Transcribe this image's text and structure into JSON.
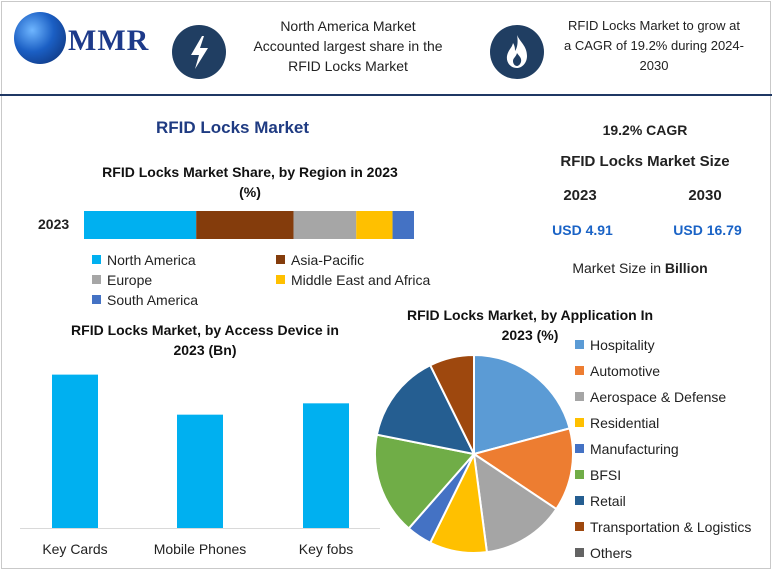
{
  "header": {
    "logo_text": "MMR",
    "banner1_lines": [
      "North America Market",
      "Accounted largest share in the",
      "RFID Locks Market"
    ],
    "banner2_lines": [
      "RFID Locks Market to grow at",
      "a CAGR of 19.2% during 2024-",
      "2030"
    ],
    "icon1": "lightning-bolt-icon",
    "icon2": "flame-icon"
  },
  "colors": {
    "dark_blue": "#203e62",
    "accent_blue": "#1a63c6",
    "title_blue": "#1f3b82"
  },
  "main_title": "RFID Locks Market",
  "summary": {
    "cagr": "19.2% CAGR",
    "size_title": "RFID Locks Market Size",
    "year_start": "2023",
    "year_end": "2030",
    "value_start": "USD 4.91",
    "value_end": "USD 16.79",
    "unit_prefix": "Market Size in ",
    "unit_bold": "Billion"
  },
  "chart_data": [
    {
      "type": "bar",
      "orientation": "stacked-horizontal",
      "title": "RFID Locks Market Share, by Region in 2023 (%)",
      "categories": [
        "2023"
      ],
      "series": [
        {
          "name": "North America",
          "values": [
            34
          ],
          "color": "#00b0f0"
        },
        {
          "name": "Asia-Pacific",
          "values": [
            29.5
          ],
          "color": "#843c0c"
        },
        {
          "name": "Europe",
          "values": [
            19
          ],
          "color": "#a6a6a6"
        },
        {
          "name": "Middle East and Africa",
          "values": [
            11
          ],
          "color": "#ffc000"
        },
        {
          "name": "South America",
          "values": [
            6.5
          ],
          "color": "#4472c4"
        }
      ],
      "legend_placement": "bottom"
    },
    {
      "type": "bar",
      "title": "RFID Locks Market, by Access Device in 2023 (Bn)",
      "categories": [
        "Key Cards",
        "Mobile Phones",
        "Key fobs"
      ],
      "values": [
        2.03,
        1.5,
        1.65
      ],
      "ylim": [
        0,
        2.25
      ],
      "color": "#00b0f0",
      "grid": false
    },
    {
      "type": "pie",
      "title": "RFID Locks Market, by Application In 2023 (%)",
      "categories": [
        "Hospitality",
        "Automotive",
        "Aerospace & Defense",
        "Residential",
        "Manufacturing",
        "BFSI",
        "Retail",
        "Transportation & Logistics",
        "Others"
      ],
      "values": [
        20,
        13,
        13,
        9,
        4,
        16,
        14,
        7,
        0
      ],
      "colors": [
        "#5b9bd5",
        "#ed7d31",
        "#a5a5a5",
        "#ffc000",
        "#4472c4",
        "#70ad47",
        "#255e91",
        "#9e480e",
        "#636363"
      ],
      "legend_placement": "right"
    }
  ]
}
